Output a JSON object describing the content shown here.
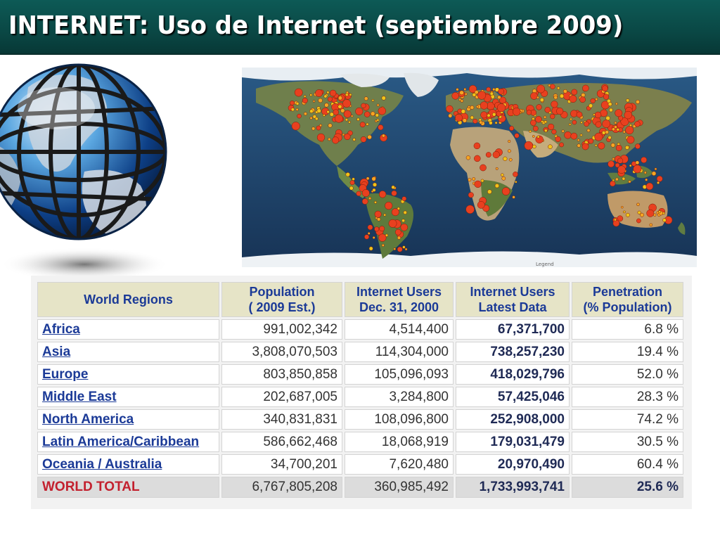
{
  "slide": {
    "title": "INTERNET: Uso de Internet (septiembre 2009)"
  },
  "images": {
    "globe": "globe-image",
    "map": "world-map-internet-users"
  },
  "map": {
    "legend_label": "Legend"
  },
  "table": {
    "headers": {
      "region": "World Regions",
      "population_1": "Population",
      "population_2": "( 2009 Est.)",
      "users2000_1": "Internet Users",
      "users2000_2": "Dec. 31, 2000",
      "latest_1": "Internet Users",
      "latest_2": "Latest Data",
      "penetration_1": "Penetration",
      "penetration_2": "(% Population)"
    },
    "rows": [
      {
        "region": "Africa",
        "population": "991,002,342",
        "users2000": "4,514,400",
        "latest": "67,371,700",
        "penetration": "6.8 %"
      },
      {
        "region": "Asia",
        "population": "3,808,070,503",
        "users2000": "114,304,000",
        "latest": "738,257,230",
        "penetration": "19.4 %"
      },
      {
        "region": "Europe",
        "population": "803,850,858",
        "users2000": "105,096,093",
        "latest": "418,029,796",
        "penetration": "52.0 %"
      },
      {
        "region": "Middle East",
        "population": "202,687,005",
        "users2000": "3,284,800",
        "latest": "57,425,046",
        "penetration": "28.3 %"
      },
      {
        "region": "North America",
        "population": "340,831,831",
        "users2000": "108,096,800",
        "latest": "252,908,000",
        "penetration": "74.2 %"
      },
      {
        "region": "Latin America/Caribbean",
        "population": "586,662,468",
        "users2000": "18,068,919",
        "latest": "179,031,479",
        "penetration": "30.5 %"
      },
      {
        "region": "Oceania / Australia",
        "population": "34,700,201",
        "users2000": "7,620,480",
        "latest": "20,970,490",
        "penetration": "60.4 %"
      }
    ],
    "total": {
      "region": "WORLD TOTAL",
      "population": "6,767,805,208",
      "users2000": "360,985,492",
      "latest": "1,733,993,741",
      "penetration": "25.6 %"
    }
  },
  "colors": {
    "banner": "#0a4744",
    "header_text": "#1b3a97",
    "latest_header": "#c3202e",
    "header_bg": "#e6e4c7"
  }
}
